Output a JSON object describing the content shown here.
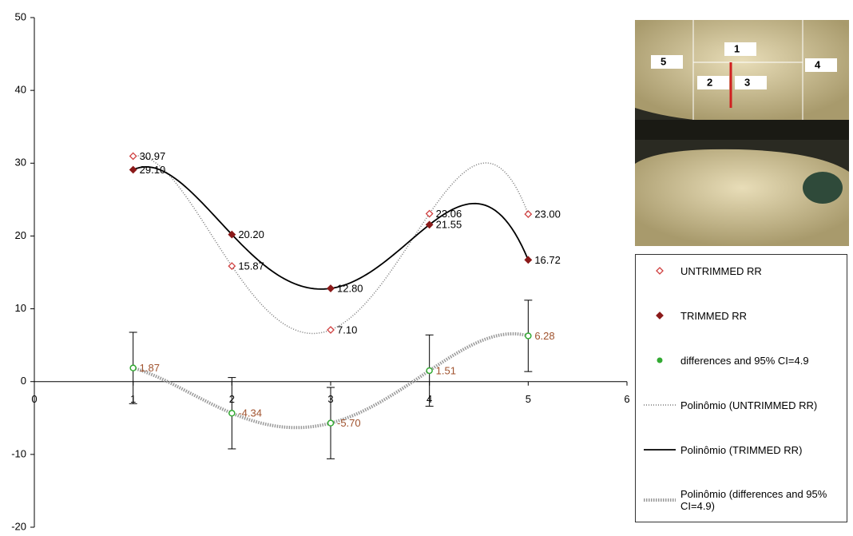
{
  "chart_data": {
    "type": "scatter",
    "x": [
      1,
      2,
      3,
      4,
      5
    ],
    "xlim": [
      0,
      6
    ],
    "xticks": [
      0,
      1,
      2,
      3,
      4,
      5,
      6
    ],
    "ylim": [
      -20,
      50
    ],
    "yticks": [
      -20,
      -10,
      0,
      10,
      20,
      30,
      40,
      50
    ],
    "series": [
      {
        "name": "UNTRIMMED RR",
        "color": "#d04040",
        "marker": "open-diamond",
        "values": [
          30.97,
          15.87,
          7.1,
          23.06,
          23.0
        ],
        "value_labels": [
          "30.97",
          "15.87",
          "7.10",
          "23.06",
          "23.00"
        ],
        "label_color": "#000000"
      },
      {
        "name": "TRIMMED RR",
        "color": "#8b1a1a",
        "marker": "diamond",
        "values": [
          29.1,
          20.2,
          12.8,
          21.55,
          16.72
        ],
        "value_labels": [
          "29.10",
          "20.20",
          "12.80",
          "21.55",
          "16.72"
        ],
        "label_color": "#000000"
      },
      {
        "name": "differences and 95% CI=4.9",
        "color": "#33aa33",
        "marker": "circle",
        "values": [
          1.87,
          -4.34,
          -5.7,
          1.51,
          6.28
        ],
        "value_labels": [
          "1.87",
          "-4.34",
          "-5.70",
          "1.51",
          "6.28"
        ],
        "error": 4.9,
        "label_color": "#a0522d"
      }
    ],
    "trendlines": [
      {
        "name": "Polinômio (UNTRIMMED RR)",
        "series": 0,
        "style": "dotted"
      },
      {
        "name": "Polinômio (TRIMMED RR)",
        "series": 1,
        "style": "solid"
      },
      {
        "name": "Polinômio (differences and 95% CI=4.9)",
        "series": 2,
        "style": "thick-dotted"
      }
    ],
    "legend": "right",
    "image_labels": [
      "1",
      "2",
      "3",
      "4",
      "5"
    ]
  }
}
